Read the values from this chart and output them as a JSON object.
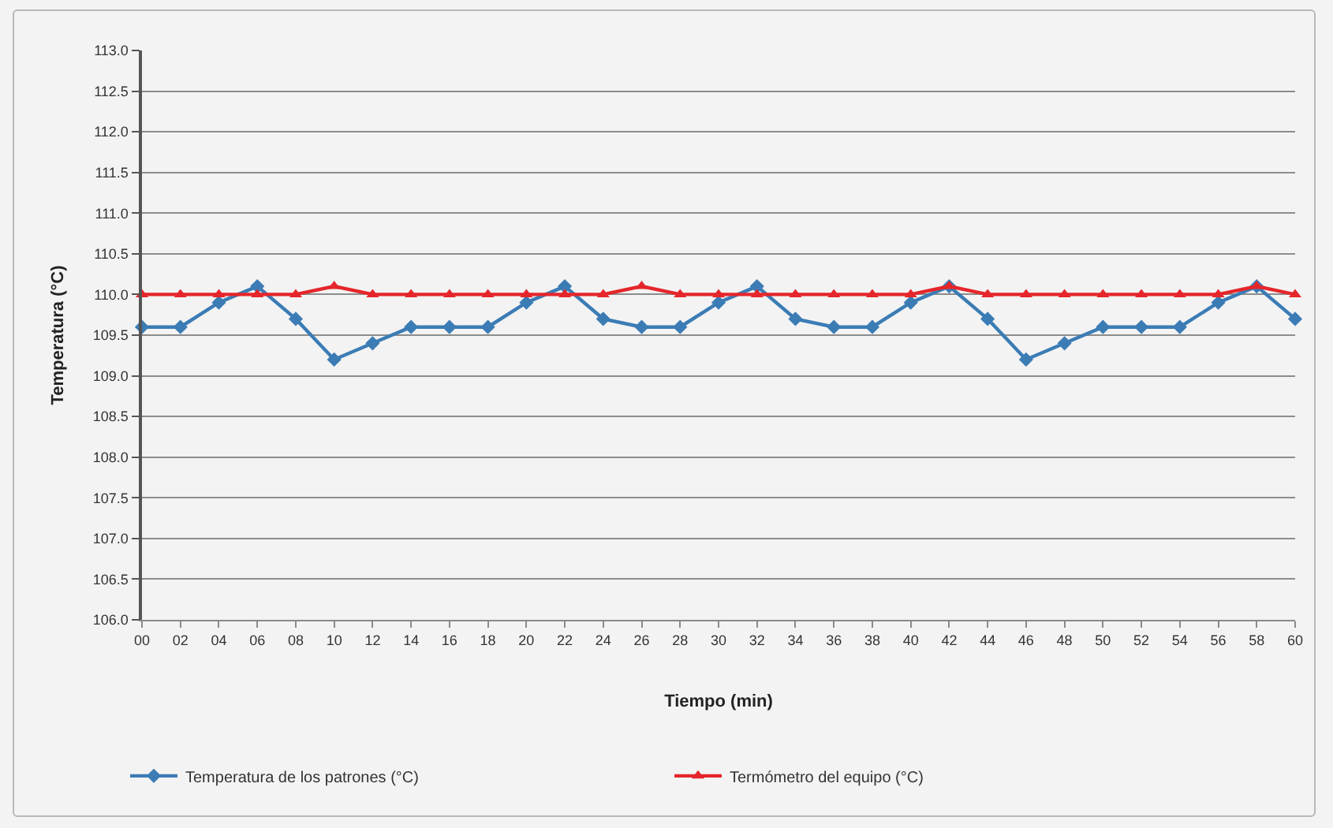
{
  "chart_data": {
    "type": "line",
    "xlabel": "Tiempo (min)",
    "ylabel": "Temperatura (°C)",
    "categories": [
      "00",
      "02",
      "04",
      "06",
      "08",
      "10",
      "12",
      "14",
      "16",
      "18",
      "20",
      "22",
      "24",
      "26",
      "28",
      "30",
      "32",
      "34",
      "36",
      "38",
      "40",
      "42",
      "44",
      "46",
      "48",
      "50",
      "52",
      "54",
      "56",
      "58",
      "60"
    ],
    "series": [
      {
        "name": "Temperatura de los patrones (°C)",
        "color": "#3b7cb5",
        "marker": "diamond",
        "values": [
          109.6,
          109.6,
          109.9,
          110.1,
          109.7,
          109.2,
          109.4,
          109.6,
          109.6,
          109.6,
          109.9,
          110.1,
          109.7,
          109.6,
          109.6,
          109.9,
          110.1,
          109.7,
          109.6,
          109.6,
          109.9,
          110.1,
          109.7,
          109.2,
          109.4,
          109.6,
          109.6,
          109.6,
          109.9,
          110.1,
          109.7
        ]
      },
      {
        "name": "Termómetro del equipo (°C)",
        "color": "#e5262b",
        "marker": "triangle",
        "values": [
          110.0,
          110.0,
          110.0,
          110.0,
          110.0,
          110.1,
          110.0,
          110.0,
          110.0,
          110.0,
          110.0,
          110.0,
          110.0,
          110.1,
          110.0,
          110.0,
          110.0,
          110.0,
          110.0,
          110.0,
          110.0,
          110.1,
          110.0,
          110.0,
          110.0,
          110.0,
          110.0,
          110.0,
          110.0,
          110.1,
          110.0
        ]
      }
    ],
    "ylim": [
      106,
      113
    ],
    "yticks": [
      {
        "value": 106,
        "label": "106.0"
      },
      {
        "value": 106.5,
        "label": "106.5"
      },
      {
        "value": 107,
        "label": "107.0"
      },
      {
        "value": 107.5,
        "label": "107.5"
      },
      {
        "value": 108,
        "label": "108.0"
      },
      {
        "value": 108.5,
        "label": "108.5"
      },
      {
        "value": 109,
        "label": "109.0"
      },
      {
        "value": 109.5,
        "label": "109.5"
      },
      {
        "value": 110,
        "label": "110.0"
      },
      {
        "value": 110.5,
        "label": "110.5"
      },
      {
        "value": 111,
        "label": "111.0"
      },
      {
        "value": 111.5,
        "label": "111.5"
      },
      {
        "value": 112,
        "label": "112.0"
      },
      {
        "value": 112.5,
        "label": "112.5"
      },
      {
        "value": 113,
        "label": "113.0"
      }
    ],
    "grid": "y",
    "legend": "bottom",
    "line_style": "solid"
  }
}
